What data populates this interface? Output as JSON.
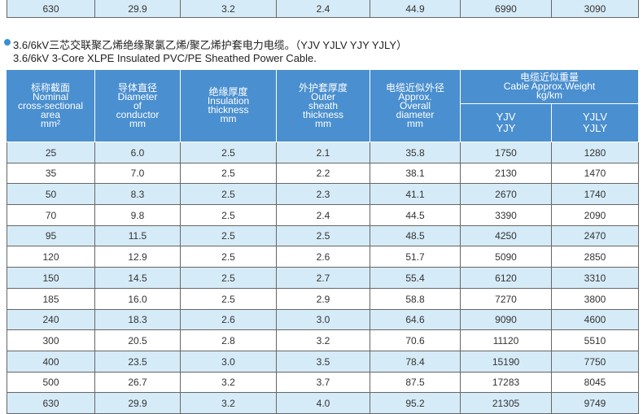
{
  "top_row": [
    "630",
    "29.9",
    "3.2",
    "2.4",
    "44.9",
    "6990",
    "3090"
  ],
  "heading": {
    "cn": "3.6/6kV三芯交联聚乙烯绝缘聚氯乙烯/聚乙烯护套电力电缆。（YJV  YJLV  YJY  YJLY）",
    "en": "3.6/6kV 3-Core XLPE Insulated PVC/PE Sheathed Power Cable."
  },
  "table": {
    "header": [
      [
        "标称截面",
        "Nominal",
        "cross-sectional",
        "area",
        "mm²"
      ],
      [
        "导体直径",
        "Diameter",
        "of",
        "conductor",
        "mm"
      ],
      [
        "绝缘厚度",
        "Insulation",
        "thickness",
        "mm"
      ],
      [
        "外护套厚度",
        "Outer",
        "sheath",
        "thickness",
        "mm"
      ],
      [
        "电缆近似外径",
        "Approx.",
        "Overall",
        "diameter",
        "mm"
      ],
      [
        "电缆近似重量",
        "Cable Approx.Weight",
        "kg/km"
      ]
    ],
    "subheader": [
      [
        "YJV",
        "YJY"
      ],
      [
        "YJLV",
        "YJLY"
      ]
    ],
    "rows": [
      [
        "25",
        "6.0",
        "2.5",
        "2.1",
        "35.8",
        "1750",
        "1280"
      ],
      [
        "35",
        "7.0",
        "2.5",
        "2.2",
        "38.1",
        "2130",
        "1470"
      ],
      [
        "50",
        "8.3",
        "2.5",
        "2.3",
        "41.1",
        "2670",
        "1740"
      ],
      [
        "70",
        "9.8",
        "2.5",
        "2.4",
        "44.5",
        "3390",
        "2090"
      ],
      [
        "95",
        "11.5",
        "2.5",
        "2.5",
        "48.5",
        "4250",
        "2470"
      ],
      [
        "120",
        "12.9",
        "2.5",
        "2.6",
        "51.7",
        "5090",
        "2850"
      ],
      [
        "150",
        "14.5",
        "2.5",
        "2.7",
        "55.4",
        "6120",
        "3310"
      ],
      [
        "185",
        "16.0",
        "2.5",
        "2.9",
        "58.8",
        "7270",
        "3800"
      ],
      [
        "240",
        "18.3",
        "2.6",
        "3.0",
        "64.6",
        "9090",
        "4600"
      ],
      [
        "300",
        "20.5",
        "2.8",
        "3.2",
        "70.6",
        "11120",
        "5510"
      ],
      [
        "400",
        "23.5",
        "3.0",
        "3.5",
        "78.4",
        "15190",
        "7750"
      ],
      [
        "500",
        "26.7",
        "3.2",
        "3.7",
        "87.5",
        "17283",
        "8045"
      ],
      [
        "630",
        "29.9",
        "3.2",
        "4.0",
        "95.2",
        "21305",
        "9749"
      ]
    ]
  }
}
